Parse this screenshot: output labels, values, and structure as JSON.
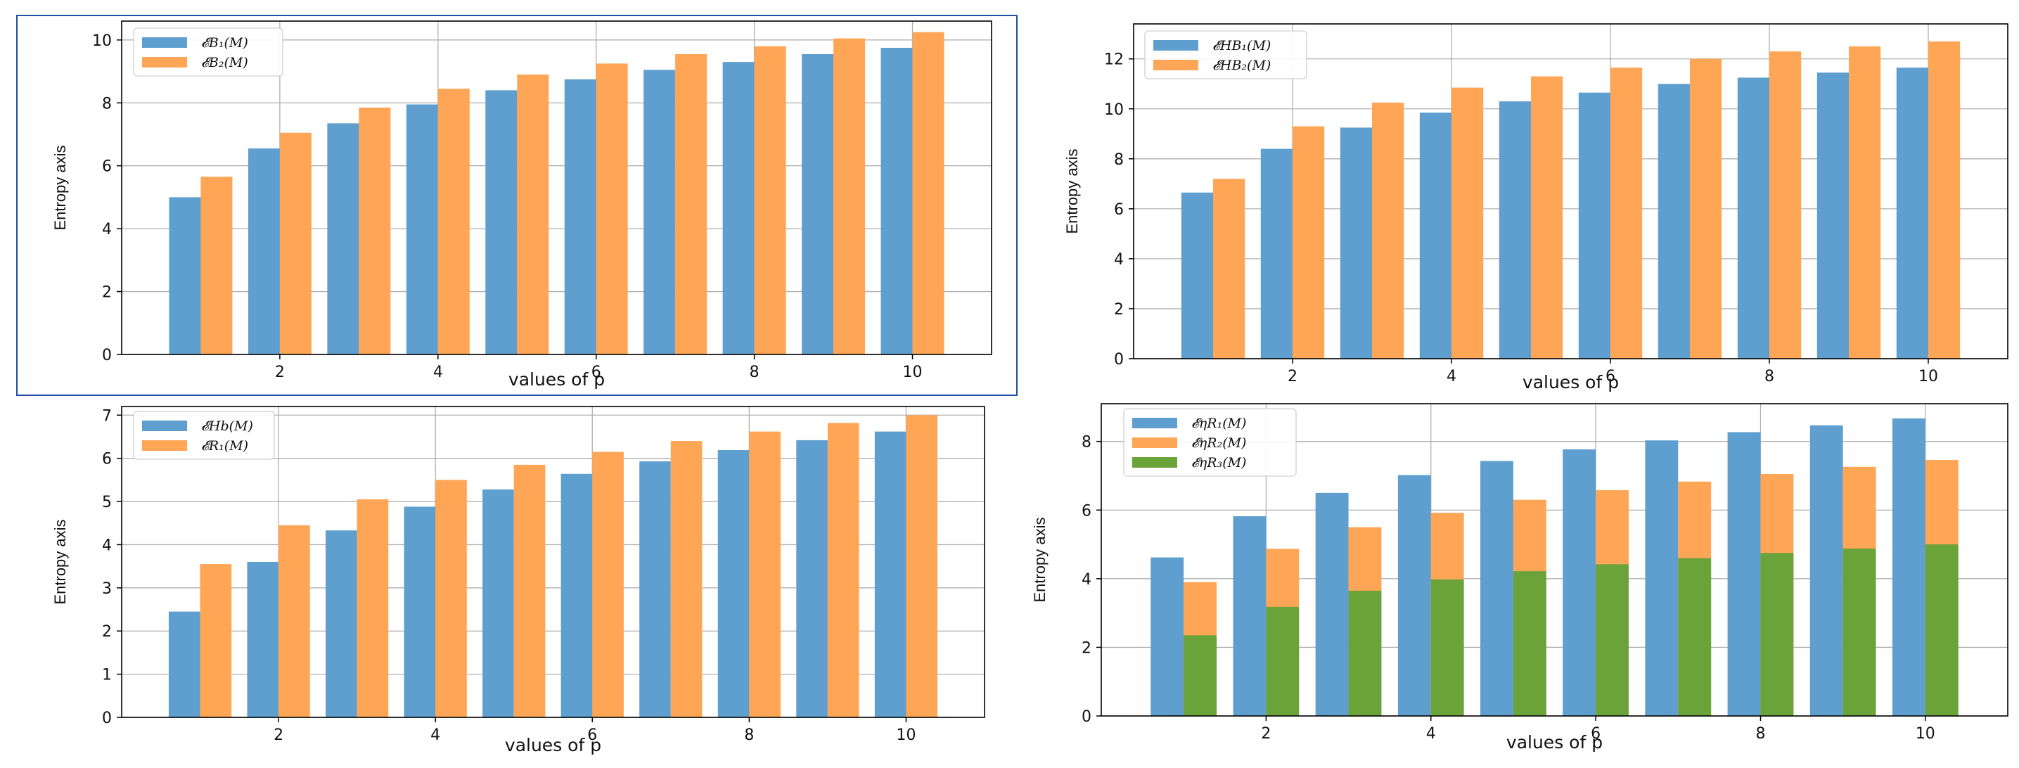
{
  "colors": {
    "blue": "#5f9fcf",
    "orange": "#ffa556",
    "green": "#6aa33a",
    "grid": "#b0b0b0",
    "frame": "#1f4fa8"
  },
  "chart_data": [
    {
      "type": "bar",
      "xlabel": "values of p",
      "ylabel": "Entropy axis",
      "x": [
        1,
        2,
        3,
        4,
        5,
        6,
        7,
        8,
        9,
        10
      ],
      "xticks": [
        "2",
        "4",
        "6",
        "8",
        "10"
      ],
      "ylim": [
        0,
        10.6
      ],
      "yticks": [
        "0",
        "2",
        "4",
        "6",
        "8",
        "10"
      ],
      "grid": true,
      "legend_position": "top-left",
      "series": [
        {
          "name": "𝓔B₁(M)",
          "values": [
            5.0,
            6.55,
            7.35,
            7.95,
            8.4,
            8.75,
            9.05,
            9.3,
            9.55,
            9.75
          ]
        },
        {
          "name": "𝓔B₂(M)",
          "values": [
            5.65,
            7.05,
            7.85,
            8.45,
            8.9,
            9.25,
            9.55,
            9.8,
            10.05,
            10.25
          ]
        }
      ]
    },
    {
      "type": "bar",
      "xlabel": "values of p",
      "ylabel": "Entropy axis",
      "x": [
        1,
        2,
        3,
        4,
        5,
        6,
        7,
        8,
        9,
        10
      ],
      "xticks": [
        "2",
        "4",
        "6",
        "8",
        "10"
      ],
      "ylim": [
        0,
        13.4
      ],
      "yticks": [
        "0",
        "2",
        "4",
        "6",
        "8",
        "10",
        "12"
      ],
      "grid": true,
      "legend_position": "top-left",
      "series": [
        {
          "name": "𝓔HB₁(M)",
          "values": [
            6.65,
            8.4,
            9.25,
            9.85,
            10.3,
            10.65,
            11.0,
            11.25,
            11.45,
            11.65
          ]
        },
        {
          "name": "𝓔HB₂(M)",
          "values": [
            7.2,
            9.3,
            10.25,
            10.85,
            11.3,
            11.65,
            12.0,
            12.3,
            12.5,
            12.7
          ]
        }
      ]
    },
    {
      "type": "bar",
      "xlabel": "values of p",
      "ylabel": "Entropy axis",
      "x": [
        1,
        2,
        3,
        4,
        5,
        6,
        7,
        8,
        9,
        10
      ],
      "xticks": [
        "2",
        "4",
        "6",
        "8",
        "10"
      ],
      "ylim": [
        0,
        7.2
      ],
      "yticks": [
        "0",
        "1",
        "2",
        "3",
        "4",
        "5",
        "6",
        "7"
      ],
      "grid": true,
      "legend_position": "top-left",
      "series": [
        {
          "name": "𝓔Hb(M)",
          "values": [
            2.45,
            3.6,
            4.33,
            4.88,
            5.28,
            5.64,
            5.93,
            6.19,
            6.42,
            6.62
          ]
        },
        {
          "name": "𝓔R₁(M)",
          "values": [
            3.55,
            4.45,
            5.05,
            5.5,
            5.85,
            6.15,
            6.4,
            6.62,
            6.82,
            7.0
          ]
        }
      ]
    },
    {
      "type": "bar",
      "xlabel": "values of p",
      "ylabel": "Entropy axis",
      "x": [
        1,
        2,
        3,
        4,
        5,
        6,
        7,
        8,
        9,
        10
      ],
      "xticks": [
        "2",
        "4",
        "6",
        "8",
        "10"
      ],
      "ylim": [
        0,
        9.1
      ],
      "yticks": [
        "0",
        "2",
        "4",
        "6",
        "8"
      ],
      "grid": true,
      "legend_position": "top-left",
      "series": [
        {
          "name": "𝓔ηR₁(M)",
          "values": [
            4.62,
            5.82,
            6.5,
            7.02,
            7.43,
            7.77,
            8.03,
            8.27,
            8.47,
            8.67
          ]
        },
        {
          "name": "𝓔ηR₂(M)",
          "values": [
            3.9,
            4.87,
            5.5,
            5.92,
            6.3,
            6.58,
            6.83,
            7.05,
            7.26,
            7.46
          ]
        },
        {
          "name": "𝓔ηR₃(M)",
          "values": [
            2.35,
            3.18,
            3.65,
            3.98,
            4.22,
            4.42,
            4.6,
            4.75,
            4.88,
            5.0
          ]
        }
      ]
    }
  ]
}
